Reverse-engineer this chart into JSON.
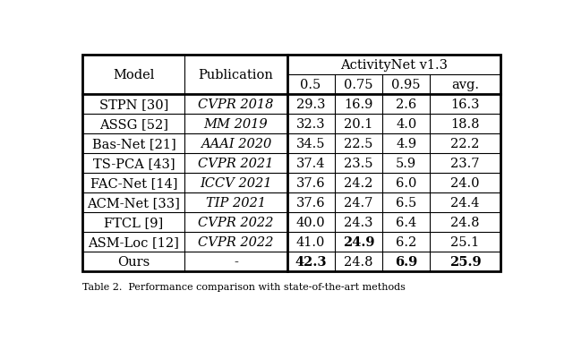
{
  "rows": [
    [
      "STPN [30]",
      "CVPR 2018",
      "29.3",
      "16.9",
      "2.6",
      "16.3",
      [
        false,
        false,
        false,
        false
      ]
    ],
    [
      "ASSG [52]",
      "MM 2019",
      "32.3",
      "20.1",
      "4.0",
      "18.8",
      [
        false,
        false,
        false,
        false
      ]
    ],
    [
      "Bas-Net [21]",
      "AAAI 2020",
      "34.5",
      "22.5",
      "4.9",
      "22.2",
      [
        false,
        false,
        false,
        false
      ]
    ],
    [
      "TS-PCA [43]",
      "CVPR 2021",
      "37.4",
      "23.5",
      "5.9",
      "23.7",
      [
        false,
        false,
        false,
        false
      ]
    ],
    [
      "FAC-Net [14]",
      "ICCV 2021",
      "37.6",
      "24.2",
      "6.0",
      "24.0",
      [
        false,
        false,
        false,
        false
      ]
    ],
    [
      "ACM-Net [33]",
      "TIP 2021",
      "37.6",
      "24.7",
      "6.5",
      "24.4",
      [
        false,
        false,
        false,
        false
      ]
    ],
    [
      "FTCL [9]",
      "CVPR 2022",
      "40.0",
      "24.3",
      "6.4",
      "24.8",
      [
        false,
        false,
        false,
        false
      ]
    ],
    [
      "ASM-Loc [12]",
      "CVPR 2022",
      "41.0",
      "24.9",
      "6.2",
      "25.1",
      [
        false,
        true,
        false,
        false
      ]
    ],
    [
      "Ours",
      "-",
      "42.3",
      "24.8",
      "6.9",
      "25.9",
      [
        true,
        false,
        true,
        true
      ]
    ]
  ],
  "sub_headers": [
    "0.5",
    "0.75",
    "0.95",
    "avg."
  ],
  "fig_width": 6.4,
  "fig_height": 4.02,
  "background_color": "#ffffff",
  "line_color": "#000000",
  "font_size": 10.5,
  "caption": "Table 2.  Performance comparison with state-of-the-art methods"
}
